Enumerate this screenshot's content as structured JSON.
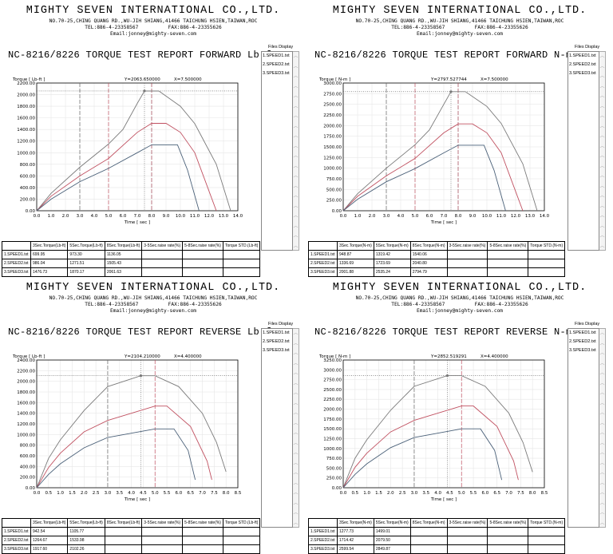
{
  "company": {
    "name": "MIGHTY SEVEN INTERNATIONAL CO.,LTD.",
    "address": "NO.70-25,CHING QUANG RD.,WU-JIH SHIANG,41466 TAICHUNG HSIEN,TAIWAN,ROC",
    "tel": "TEL:886-4-23358567",
    "fax": "FAX:886-4-23355626",
    "email": "Email:jonney@mighty-seven.com"
  },
  "files_display_label": "Files Display",
  "panels": [
    {
      "title": "NC-8216/8226 TORQUE TEST REPORT FORWARD Lb-ft",
      "files": [
        "1.SPEED1.txt",
        "2.SPEED2.txt",
        "3.SPEED3.txt"
      ],
      "chart_data": {
        "type": "line",
        "ylabel": "Torque [ Lb-ft ]",
        "xlabel": "Time [ sec ]",
        "readout_y": "Y=2063.650000",
        "readout_x": "X=7.500000",
        "xlim": [
          0,
          14
        ],
        "ylim": [
          0,
          2200
        ],
        "xticks": [
          "0.0",
          "1.0",
          "2.0",
          "3.0",
          "4.0",
          "5.0",
          "6.0",
          "7.0",
          "8.0",
          "9.0",
          "10.0",
          "11.0",
          "12.0",
          "13.0",
          "14.0"
        ],
        "yticks": [
          "0.00",
          "200.00",
          "400.00",
          "600.00",
          "800.00",
          "1000.00",
          "1200.00",
          "1400.00",
          "1600.00",
          "1800.00",
          "2000.00",
          "2200.00"
        ],
        "cursor": [
          7.5,
          2063.65
        ],
        "markers_x": [
          3.0,
          5.0,
          8.0
        ],
        "series": [
          {
            "color": "#7a7a7a",
            "points": [
              [
                0,
                0
              ],
              [
                1,
                300
              ],
              [
                3,
                750
              ],
              [
                5,
                1150
              ],
              [
                6,
                1400
              ],
              [
                7,
                1850
              ],
              [
                7.5,
                2063
              ],
              [
                8.5,
                2063
              ],
              [
                10,
                1800
              ],
              [
                11,
                1500
              ],
              [
                12.5,
                800
              ],
              [
                13.5,
                0
              ]
            ]
          },
          {
            "color": "#c05060",
            "points": [
              [
                0,
                0
              ],
              [
                1,
                250
              ],
              [
                3,
                600
              ],
              [
                5,
                900
              ],
              [
                7,
                1350
              ],
              [
                8,
                1505
              ],
              [
                9,
                1505
              ],
              [
                10,
                1350
              ],
              [
                11,
                1000
              ],
              [
                12.5,
                0
              ]
            ]
          },
          {
            "color": "#4a6078",
            "points": [
              [
                0,
                0
              ],
              [
                1,
                200
              ],
              [
                3,
                500
              ],
              [
                5,
                730
              ],
              [
                7,
                1000
              ],
              [
                8,
                1136
              ],
              [
                9.8,
                1136
              ],
              [
                10.5,
                700
              ],
              [
                11.3,
                0
              ]
            ]
          }
        ]
      },
      "table": {
        "headers": [
          "3Sec.Torque(Lb-ft)",
          "5Sec.Torque(Lb-ft)",
          "8Sec.Torque(Lb-ft)",
          "3-5Sec.raise rate(%)",
          "5-8Sec.raise rate(%)",
          "Torque STD.(Lb-ft)"
        ],
        "rows": [
          [
            "1.SPEED1.txt",
            "699.95",
            "973.30",
            "1136.05",
            "",
            "",
            ""
          ],
          [
            "2.SPEED2.txt",
            "986.04",
            "1271.51",
            "1505.43",
            "",
            "",
            ""
          ],
          [
            "3.SPEED3.txt",
            "1476.73",
            "1870.17",
            "2061.63",
            "",
            "",
            ""
          ]
        ]
      }
    },
    {
      "title": "NC-8216/8226 TORQUE TEST REPORT FORWARD N-m",
      "files": [
        "1.SPEED1.txt",
        "2.SPEED2.txt",
        "3.SPEED3.txt"
      ],
      "chart_data": {
        "type": "line",
        "ylabel": "Torque [ N-m ]",
        "xlabel": "Time [ sec ]",
        "readout_y": "Y=2797.527744",
        "readout_x": "X=7.500000",
        "xlim": [
          0,
          14
        ],
        "ylim": [
          0,
          3000
        ],
        "xticks": [
          "0.0",
          "1.0",
          "2.0",
          "3.0",
          "4.0",
          "5.0",
          "6.0",
          "7.0",
          "8.0",
          "9.0",
          "10.0",
          "11.0",
          "12.0",
          "13.0",
          "14.0"
        ],
        "yticks": [
          "0.00",
          "250.00",
          "500.00",
          "750.00",
          "1000.00",
          "1250.00",
          "1500.00",
          "1750.00",
          "2000.00",
          "2250.00",
          "2500.00",
          "2750.00",
          "3000.00"
        ],
        "cursor": [
          7.5,
          2797.53
        ],
        "markers_x": [
          3.0,
          5.0,
          8.0
        ],
        "series": [
          {
            "color": "#7a7a7a",
            "points": [
              [
                0,
                0
              ],
              [
                1,
                400
              ],
              [
                3,
                1000
              ],
              [
                5,
                1550
              ],
              [
                6,
                1900
              ],
              [
                7,
                2500
              ],
              [
                7.5,
                2797
              ],
              [
                8.5,
                2797
              ],
              [
                10,
                2450
              ],
              [
                11,
                2050
              ],
              [
                12.5,
                1100
              ],
              [
                13.5,
                0
              ]
            ]
          },
          {
            "color": "#c05060",
            "points": [
              [
                0,
                0
              ],
              [
                1,
                340
              ],
              [
                3,
                820
              ],
              [
                5,
                1230
              ],
              [
                7,
                1830
              ],
              [
                8,
                2040
              ],
              [
                9,
                2040
              ],
              [
                10,
                1830
              ],
              [
                11,
                1360
              ],
              [
                12.5,
                0
              ]
            ]
          },
          {
            "color": "#4a6078",
            "points": [
              [
                0,
                0
              ],
              [
                1,
                270
              ],
              [
                3,
                680
              ],
              [
                5,
                990
              ],
              [
                7,
                1360
              ],
              [
                8,
                1540
              ],
              [
                9.8,
                1540
              ],
              [
                10.5,
                950
              ],
              [
                11.3,
                0
              ]
            ]
          }
        ]
      },
      "table": {
        "headers": [
          "3Sec.Torque(N-m)",
          "5Sec.Torque(N-m)",
          "8Sec.Torque(N-m)",
          "3-5Sec.raise rate(%)",
          "5-8Sec.raise rate(%)",
          "Torque STD.(N-m)"
        ],
        "rows": [
          [
            "1.SPEED1.txt",
            "948.87",
            "1319.42",
            "1540.06",
            "",
            "",
            ""
          ],
          [
            "2.SPEED2.txt",
            "1336.69",
            "1723.69",
            "2040.80",
            "",
            "",
            ""
          ],
          [
            "3.SPEED3.txt",
            "2001.88",
            "2535.24",
            "2794.79",
            "",
            "",
            ""
          ]
        ]
      }
    },
    {
      "title": "NC-8216/8226 TORQUE TEST REPORT REVERSE Lb-ft",
      "files": [
        "1.SPEED1.txt",
        "2.SPEED2.txt",
        "3.SPEED3.txt"
      ],
      "chart_data": {
        "type": "line",
        "ylabel": "Torque [ Lb-ft ]",
        "xlabel": "Time [ sec ]",
        "readout_y": "Y=2104.210000",
        "readout_x": "X=4.400000",
        "xlim": [
          0,
          8.5
        ],
        "ylim": [
          0,
          2400
        ],
        "xticks": [
          "0.0",
          "0.5",
          "1.0",
          "1.5",
          "2.0",
          "2.5",
          "3.0",
          "3.5",
          "4.0",
          "4.5",
          "5.0",
          "5.5",
          "6.0",
          "6.5",
          "7.0",
          "7.5",
          "8.0",
          "8.5"
        ],
        "yticks": [
          "0.00",
          "200.00",
          "400.00",
          "600.00",
          "800.00",
          "1000.00",
          "1200.00",
          "1400.00",
          "1600.00",
          "1800.00",
          "2000.00",
          "2200.00",
          "2400.00"
        ],
        "cursor": [
          4.4,
          2104.21
        ],
        "markers_x": [
          3.0,
          5.0
        ],
        "series": [
          {
            "color": "#7a7a7a",
            "points": [
              [
                0,
                0
              ],
              [
                0.5,
                550
              ],
              [
                1,
                900
              ],
              [
                2,
                1450
              ],
              [
                3,
                1900
              ],
              [
                4.4,
                2104
              ],
              [
                5,
                2104
              ],
              [
                6,
                1900
              ],
              [
                7,
                1400
              ],
              [
                7.6,
                850
              ],
              [
                8,
                300
              ]
            ]
          },
          {
            "color": "#c05060",
            "points": [
              [
                0,
                0
              ],
              [
                0.5,
                380
              ],
              [
                1,
                650
              ],
              [
                2,
                1050
              ],
              [
                3,
                1265
              ],
              [
                5,
                1534
              ],
              [
                5.5,
                1534
              ],
              [
                6.5,
                1150
              ],
              [
                7.2,
                500
              ],
              [
                7.4,
                150
              ]
            ]
          },
          {
            "color": "#4a6078",
            "points": [
              [
                0,
                0
              ],
              [
                0.5,
                250
              ],
              [
                1,
                450
              ],
              [
                2,
                750
              ],
              [
                3,
                945
              ],
              [
                5,
                1106
              ],
              [
                5.8,
                1106
              ],
              [
                6.4,
                700
              ],
              [
                6.7,
                150
              ]
            ]
          }
        ]
      },
      "table": {
        "headers": [
          "3Sec.Torque(Lb-ft)",
          "5Sec.Torque(Lb-ft)",
          "8Sec.Torque(Lb-ft)",
          "3-5Sec.raise rate(%)",
          "5-8Sec.raise rate(%)",
          "Torque STD.(Lb-ft)"
        ],
        "rows": [
          [
            "1.SPEED1.txt",
            "942.54",
            "1105.77",
            "",
            "",
            "",
            ""
          ],
          [
            "2.SPEED2.txt",
            "1264.67",
            "1533.98",
            "",
            "",
            "",
            ""
          ],
          [
            "3.SPEED3.txt",
            "1917.60",
            "2102.26",
            "",
            "",
            "",
            ""
          ]
        ]
      }
    },
    {
      "title": "NC-8216/8226 TORQUE TEST REPORT REVERSE N-m",
      "files": [
        "1.SPEED1.txt",
        "2.SPEED2.txt",
        "3.SPEED3.txt"
      ],
      "chart_data": {
        "type": "line",
        "ylabel": "Torque [ N-m ]",
        "xlabel": "Time [ sec ]",
        "readout_y": "Y=2852.519291",
        "readout_x": "X=4.400000",
        "xlim": [
          0,
          8.5
        ],
        "ylim": [
          0,
          3250
        ],
        "xticks": [
          "0.0",
          "0.5",
          "1.0",
          "1.5",
          "2.0",
          "2.5",
          "3.0",
          "3.5",
          "4.0",
          "4.5",
          "5.0",
          "5.5",
          "6.0",
          "6.5",
          "7.0",
          "7.5",
          "8.0",
          "8.5"
        ],
        "yticks": [
          "0.00",
          "250.00",
          "500.00",
          "750.00",
          "1000.00",
          "1250.00",
          "1500.00",
          "1750.00",
          "2000.00",
          "2250.00",
          "2500.00",
          "2750.00",
          "3000.00",
          "3250.00"
        ],
        "cursor": [
          4.4,
          2852.52
        ],
        "markers_x": [
          3.0,
          5.0
        ],
        "series": [
          {
            "color": "#7a7a7a",
            "points": [
              [
                0,
                0
              ],
              [
                0.5,
                750
              ],
              [
                1,
                1220
              ],
              [
                2,
                1970
              ],
              [
                3,
                2580
              ],
              [
                4.4,
                2852
              ],
              [
                5,
                2852
              ],
              [
                6,
                2580
              ],
              [
                7,
                1900
              ],
              [
                7.6,
                1150
              ],
              [
                8,
                400
              ]
            ]
          },
          {
            "color": "#c05060",
            "points": [
              [
                0,
                0
              ],
              [
                0.5,
                520
              ],
              [
                1,
                880
              ],
              [
                2,
                1420
              ],
              [
                3,
                1714
              ],
              [
                5,
                2080
              ],
              [
                5.5,
                2080
              ],
              [
                6.5,
                1560
              ],
              [
                7.2,
                680
              ],
              [
                7.4,
                200
              ]
            ]
          },
          {
            "color": "#4a6078",
            "points": [
              [
                0,
                0
              ],
              [
                0.5,
                340
              ],
              [
                1,
                610
              ],
              [
                2,
                1020
              ],
              [
                3,
                1278
              ],
              [
                5,
                1499
              ],
              [
                5.8,
                1499
              ],
              [
                6.4,
                950
              ],
              [
                6.7,
                200
              ]
            ]
          }
        ]
      },
      "table": {
        "headers": [
          "3Sec.Torque(N-m)",
          "5Sec.Torque(N-m)",
          "8Sec.Torque(N-m)",
          "3-5Sec.raise rate(%)",
          "5-8Sec.raise rate(%)",
          "Torque STD.(N-m)"
        ],
        "rows": [
          [
            "1.SPEED1.txt",
            "1277.73",
            "1499.01",
            "",
            "",
            "",
            ""
          ],
          [
            "2.SPEED2.txt",
            "1714.42",
            "2079.50",
            "",
            "",
            "",
            ""
          ],
          [
            "3.SPEED3.txt",
            "2599.54",
            "2849.87",
            "",
            "",
            "",
            ""
          ]
        ]
      }
    }
  ]
}
